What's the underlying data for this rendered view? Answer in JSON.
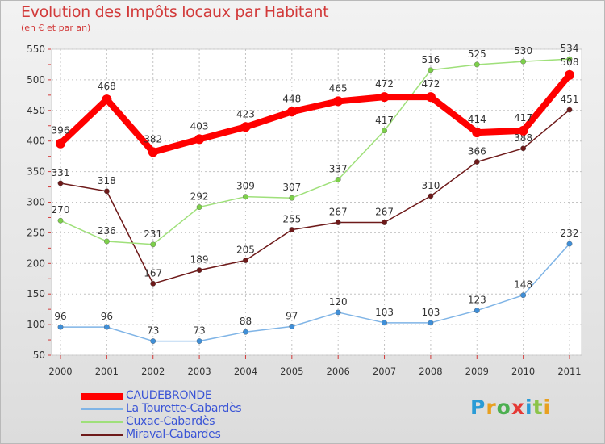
{
  "chart_data": {
    "type": "line",
    "title": "Evolution des Impôts locaux par Habitant",
    "subtitle": "(en € et par an)",
    "xlabel": "",
    "ylabel": "",
    "categories": [
      "2000",
      "2001",
      "2002",
      "2003",
      "2004",
      "2005",
      "2006",
      "2007",
      "2008",
      "2009",
      "2010",
      "2011"
    ],
    "ylim": [
      50,
      550
    ],
    "yticks": [
      50,
      100,
      150,
      200,
      250,
      300,
      350,
      400,
      450,
      500,
      550
    ],
    "grid": true,
    "series": [
      {
        "name": "Miraval-Cabardes",
        "color": "#6e1a1a",
        "marker": "#6e1a1a",
        "width": 1.5,
        "radius": 3.2,
        "values": [
          331,
          318,
          167,
          189,
          205,
          255,
          267,
          267,
          310,
          366,
          388,
          451
        ]
      },
      {
        "name": "Cuxac-Cabardès",
        "color": "#9fe07a",
        "marker": "#7dd04a",
        "width": 1.5,
        "radius": 3.2,
        "values": [
          270,
          236,
          231,
          292,
          309,
          307,
          337,
          417,
          516,
          525,
          530,
          534
        ]
      },
      {
        "name": "La Tourette-Cabardès",
        "color": "#7fb4e6",
        "marker": "#3f8fd8",
        "width": 1.5,
        "radius": 3.2,
        "values": [
          96,
          96,
          73,
          73,
          88,
          97,
          120,
          103,
          103,
          123,
          148,
          232
        ]
      },
      {
        "name": "CAUDEBRONDE",
        "color": "#ff0000",
        "marker": "#ff0000",
        "width": 8,
        "radius": 6,
        "values": [
          396,
          468,
          382,
          403,
          423,
          448,
          465,
          472,
          472,
          414,
          417,
          508
        ]
      }
    ],
    "legend_order": [
      "CAUDEBRONDE",
      "La Tourette-Cabardès",
      "Cuxac-Cabardès",
      "Miraval-Cabardes"
    ],
    "legend": "bottom-left"
  },
  "logo": {
    "letters": [
      "P",
      "r",
      "o",
      "x",
      "i",
      "t",
      "i"
    ],
    "colors": [
      "#2a9bd6",
      "#e8a020",
      "#4caf50",
      "#e53935",
      "#2a9bd6",
      "#8bc34a",
      "#e8a020"
    ]
  }
}
